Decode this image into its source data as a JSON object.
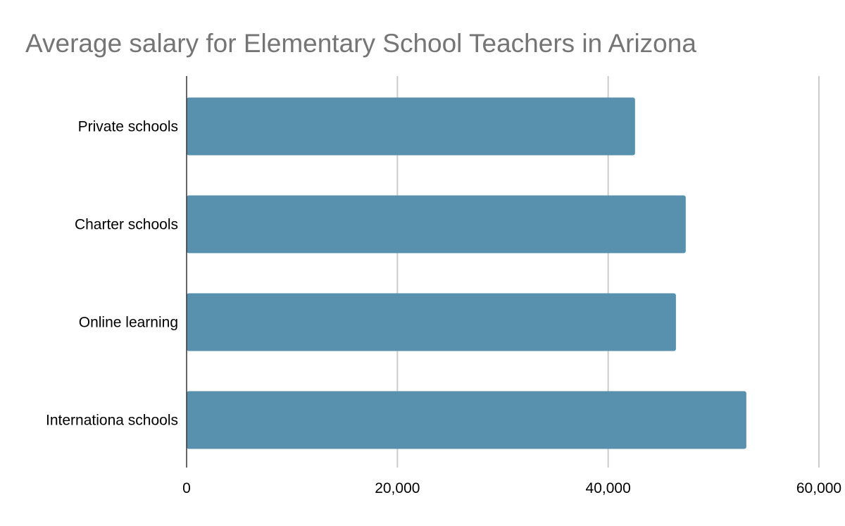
{
  "chart_data": {
    "type": "bar",
    "orientation": "horizontal",
    "title": "Average salary for Elementary School Teachers in Arizona",
    "categories": [
      "Private schools",
      "Charter schools",
      "Online learning",
      "Internationa schools"
    ],
    "values": [
      42550,
      47360,
      46430,
      53110
    ],
    "xlim": [
      0,
      60000
    ],
    "xticks": [
      0,
      20000,
      40000,
      60000
    ],
    "xtick_labels": [
      "0",
      "20,000",
      "40,000",
      "60,000"
    ],
    "grid": true,
    "bar_color": "#5891ae",
    "title_color": "#757575"
  }
}
